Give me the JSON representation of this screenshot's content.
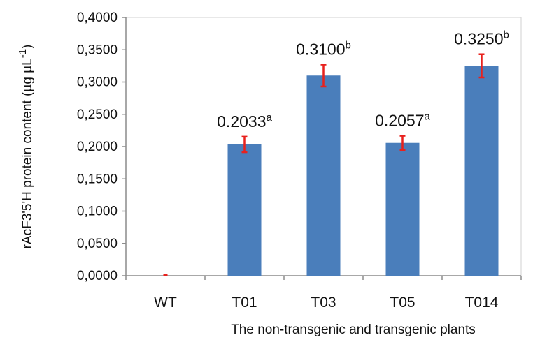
{
  "chart_data": {
    "type": "bar",
    "categories": [
      "WT",
      "T01",
      "T03",
      "T05",
      "T014"
    ],
    "values": [
      0.0,
      0.2033,
      0.31,
      0.2057,
      0.325
    ],
    "errors": [
      0.0,
      0.012,
      0.017,
      0.011,
      0.018
    ],
    "data_labels": [
      {
        "value": "",
        "superscript": ""
      },
      {
        "value": "0.2033",
        "superscript": "a"
      },
      {
        "value": "0.3100",
        "superscript": "b"
      },
      {
        "value": "0.2057",
        "superscript": "a"
      },
      {
        "value": "0.3250",
        "superscript": "b"
      }
    ],
    "y_ticks": [
      "0,0000",
      "0,0500",
      "0,1000",
      "0,1500",
      "0,2000",
      "0,2500",
      "0,3000",
      "0,3500",
      "0,4000"
    ],
    "ylim": [
      0,
      0.4
    ],
    "xlabel": "The non-transgenic and transgenic plants",
    "ylabel": {
      "text": "rAcF3'5'H protein content (µg µL",
      "superscript": "-1",
      "close": ")"
    },
    "title": "",
    "grid": false,
    "colors": {
      "bar": "#4a7ebb",
      "error_bar": "#e8211d",
      "axis": "#8c8c8c",
      "frame": "#d0d0d0"
    }
  }
}
